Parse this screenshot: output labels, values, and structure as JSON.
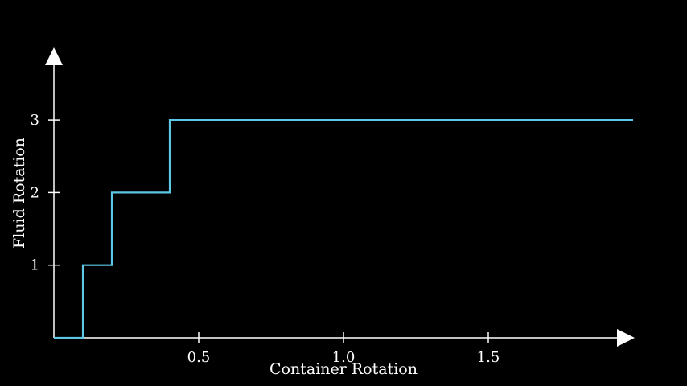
{
  "chart_data": {
    "type": "line",
    "title": "",
    "xlabel": "Container Rotation",
    "ylabel": "Fluid Rotation",
    "xlim": [
      0,
      2.0
    ],
    "ylim": [
      0,
      3.8
    ],
    "xticks": [
      0.5,
      1.0,
      1.5
    ],
    "xtick_labels": [
      "0.5",
      "1.0",
      "1.5"
    ],
    "yticks": [
      1,
      2,
      3
    ],
    "ytick_labels": [
      "1",
      "2",
      "3"
    ],
    "grid": false,
    "background": "#000000",
    "axis_color": "#ffffff",
    "series": [
      {
        "color": "#5cc8e6",
        "step": true,
        "x": [
          0,
          0.1,
          0.1,
          0.2,
          0.2,
          0.4,
          0.4,
          2.0
        ],
        "y": [
          0,
          0,
          1,
          1,
          2,
          2,
          3,
          3
        ]
      }
    ]
  }
}
